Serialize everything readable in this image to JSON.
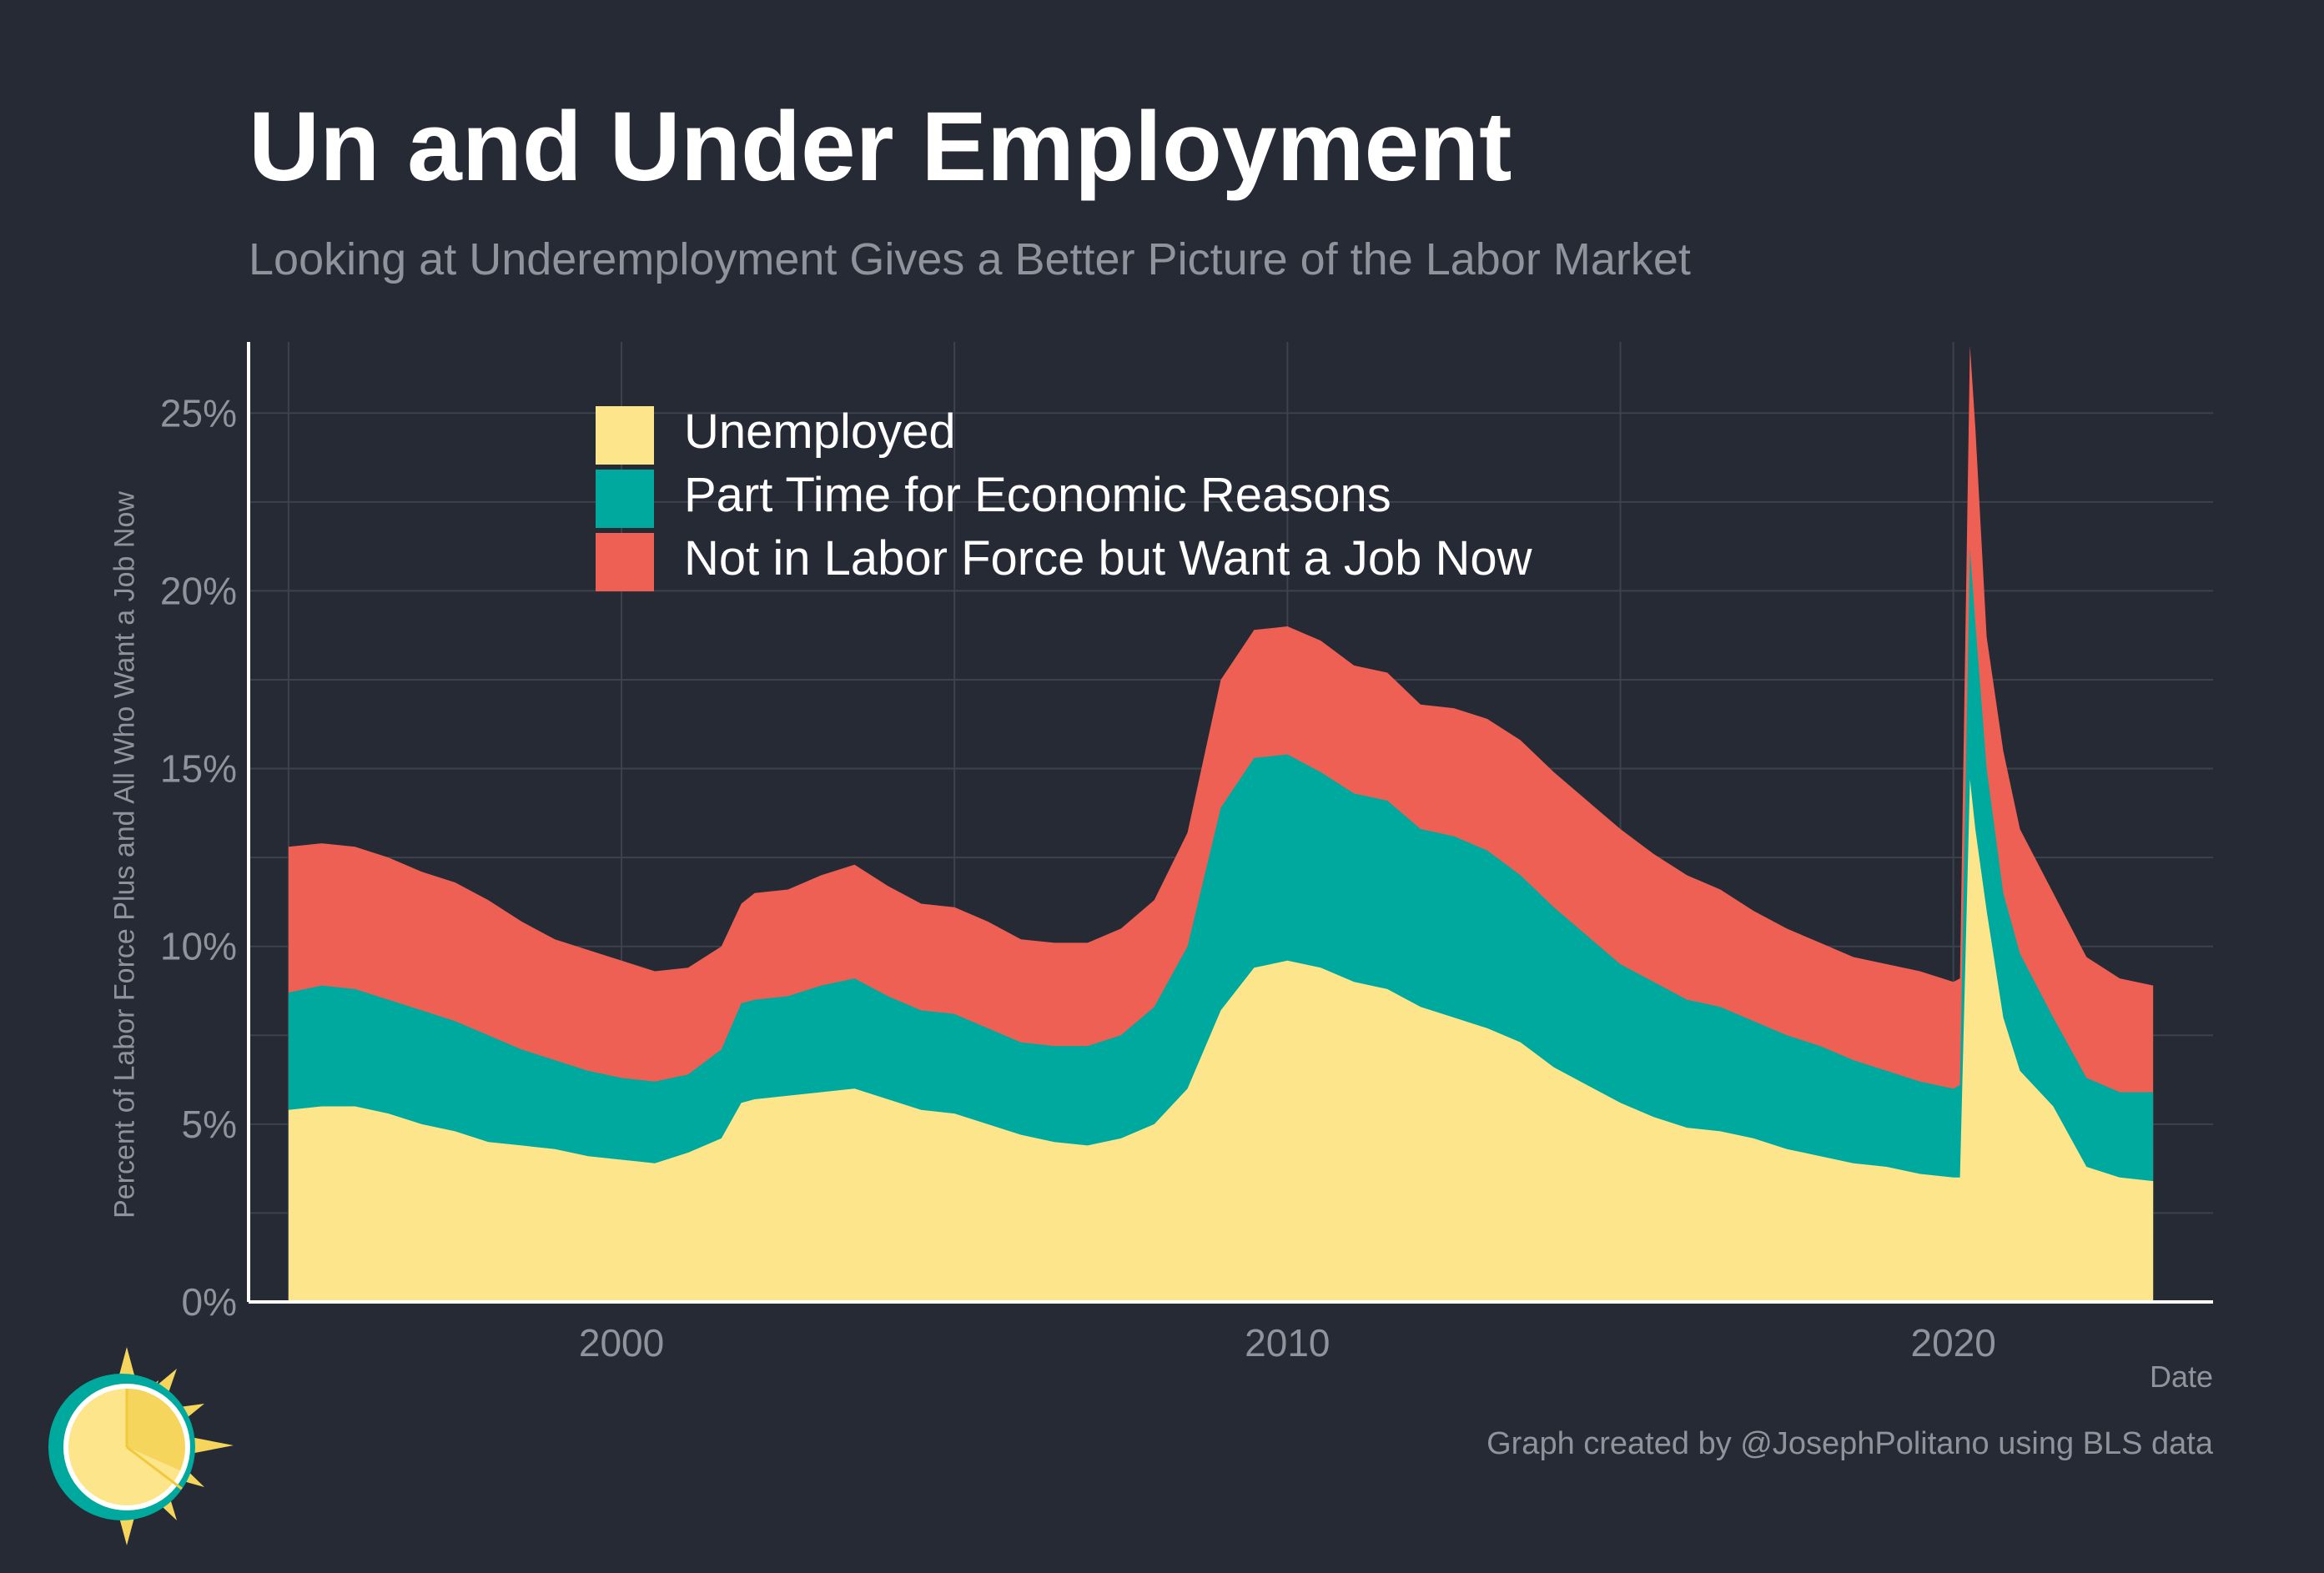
{
  "title": "Un and Under Employment",
  "subtitle": "Looking at Underemployment Gives a Better Picture of the Labor Market",
  "credit": "Graph created by @JosephPolitano using BLS data",
  "colors": {
    "background": "#252a34",
    "grid": "#3d424c",
    "axis": "#ffffff",
    "unemployed": "#fde58c",
    "part_time": "#00a99d",
    "nilf": "#ee6054"
  },
  "logo_icon": "sun-clock-icon",
  "chart_data": {
    "type": "area",
    "stacked": true,
    "xlabel": "Date",
    "ylabel": "Percent of Labor Force Plus and All Who Want a Job Now",
    "xlim": [
      1994.4,
      2023.9
    ],
    "ylim": [
      0,
      27
    ],
    "x_ticks": [
      2000,
      2010,
      2020
    ],
    "x_tick_labels": [
      "2000",
      "2010",
      "2020"
    ],
    "y_ticks": [
      0,
      5,
      10,
      15,
      20,
      25
    ],
    "y_tick_labels": [
      "0%",
      "5%",
      "10%",
      "15%",
      "20%",
      "25%"
    ],
    "grid": true,
    "legend_position": "top-left",
    "x": [
      1995.0,
      1995.5,
      1996.0,
      1996.5,
      1997.0,
      1997.5,
      1998.0,
      1998.5,
      1999.0,
      1999.5,
      2000.0,
      2000.5,
      2001.0,
      2001.5,
      2001.8,
      2002.0,
      2002.5,
      2003.0,
      2003.5,
      2004.0,
      2004.5,
      2005.0,
      2005.5,
      2006.0,
      2006.5,
      2007.0,
      2007.5,
      2008.0,
      2008.5,
      2009.0,
      2009.5,
      2010.0,
      2010.5,
      2011.0,
      2011.5,
      2012.0,
      2012.5,
      2013.0,
      2013.5,
      2014.0,
      2014.5,
      2015.0,
      2015.5,
      2016.0,
      2016.5,
      2017.0,
      2017.5,
      2018.0,
      2018.5,
      2019.0,
      2019.5,
      2020.0,
      2020.1,
      2020.25,
      2020.33,
      2020.5,
      2020.75,
      2021.0,
      2021.5,
      2022.0,
      2022.5,
      2023.0
    ],
    "series": [
      {
        "name": "Unemployed",
        "values": [
          5.4,
          5.5,
          5.5,
          5.3,
          5.0,
          4.8,
          4.5,
          4.4,
          4.3,
          4.1,
          4.0,
          3.9,
          4.2,
          4.6,
          5.6,
          5.7,
          5.8,
          5.9,
          6.0,
          5.7,
          5.4,
          5.3,
          5.0,
          4.7,
          4.5,
          4.4,
          4.6,
          5.0,
          6.0,
          8.2,
          9.4,
          9.6,
          9.4,
          9.0,
          8.8,
          8.3,
          8.0,
          7.7,
          7.3,
          6.6,
          6.1,
          5.6,
          5.2,
          4.9,
          4.8,
          4.6,
          4.3,
          4.1,
          3.9,
          3.8,
          3.6,
          3.5,
          3.5,
          14.7,
          13.3,
          11.0,
          8.0,
          6.5,
          5.5,
          3.8,
          3.5,
          3.4
        ]
      },
      {
        "name": "Part Time for Economic Reasons",
        "values": [
          3.3,
          3.4,
          3.3,
          3.2,
          3.2,
          3.1,
          3.0,
          2.7,
          2.5,
          2.4,
          2.3,
          2.3,
          2.2,
          2.5,
          2.8,
          2.8,
          2.8,
          3.0,
          3.1,
          2.9,
          2.8,
          2.8,
          2.7,
          2.6,
          2.7,
          2.8,
          2.9,
          3.3,
          4.0,
          5.7,
          5.9,
          5.8,
          5.5,
          5.3,
          5.3,
          5.0,
          5.1,
          5.0,
          4.7,
          4.5,
          4.2,
          3.9,
          3.8,
          3.6,
          3.5,
          3.3,
          3.2,
          3.1,
          2.9,
          2.7,
          2.6,
          2.5,
          2.6,
          6.5,
          5.8,
          4.0,
          3.5,
          3.3,
          2.5,
          2.5,
          2.4,
          2.5
        ]
      },
      {
        "name": "Not in Labor Force but Want a Job Now",
        "values": [
          4.1,
          4.0,
          4.0,
          4.0,
          3.9,
          3.9,
          3.8,
          3.6,
          3.4,
          3.4,
          3.3,
          3.1,
          3.0,
          2.9,
          2.8,
          3.0,
          3.0,
          3.1,
          3.2,
          3.1,
          3.0,
          3.0,
          3.0,
          2.9,
          2.9,
          2.9,
          3.0,
          3.0,
          3.2,
          3.6,
          3.6,
          3.6,
          3.7,
          3.6,
          3.6,
          3.5,
          3.6,
          3.7,
          3.8,
          3.8,
          3.8,
          3.8,
          3.6,
          3.5,
          3.3,
          3.1,
          3.0,
          2.9,
          2.9,
          3.0,
          3.1,
          3.0,
          3.0,
          5.7,
          5.5,
          3.7,
          4.0,
          3.5,
          3.5,
          3.4,
          3.2,
          3.0
        ]
      }
    ]
  }
}
